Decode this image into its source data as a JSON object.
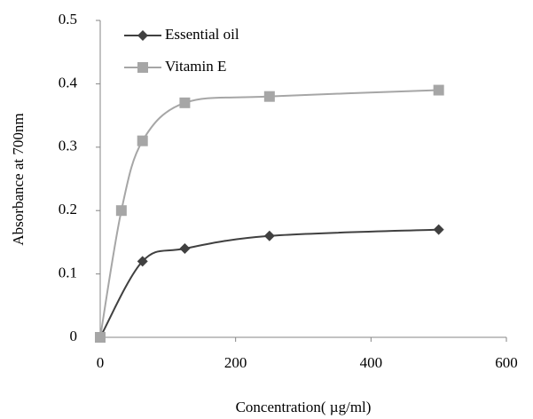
{
  "chart_data": {
    "type": "line",
    "xlabel": "Concentration( µg/ml)",
    "ylabel": "Absorbance at 700nm",
    "xlim": [
      0,
      600
    ],
    "xticks": [
      0,
      200,
      400,
      600
    ],
    "ylim": [
      0,
      0.5
    ],
    "yticks": [
      0,
      0.1,
      0.2,
      0.3,
      0.4,
      0.5
    ],
    "legend": "top-left",
    "series": [
      {
        "name": "Essential oil",
        "color": "#404040",
        "marker": "diamond",
        "x": [
          0,
          62.5,
          125,
          250,
          500
        ],
        "values": [
          0,
          0.12,
          0.14,
          0.16,
          0.17
        ]
      },
      {
        "name": "Vitamin E",
        "color": "#a6a6a6",
        "marker": "square",
        "x": [
          0,
          31.25,
          62.5,
          125,
          250,
          500
        ],
        "values": [
          0,
          0.2,
          0.31,
          0.37,
          0.38,
          0.39
        ]
      }
    ]
  }
}
